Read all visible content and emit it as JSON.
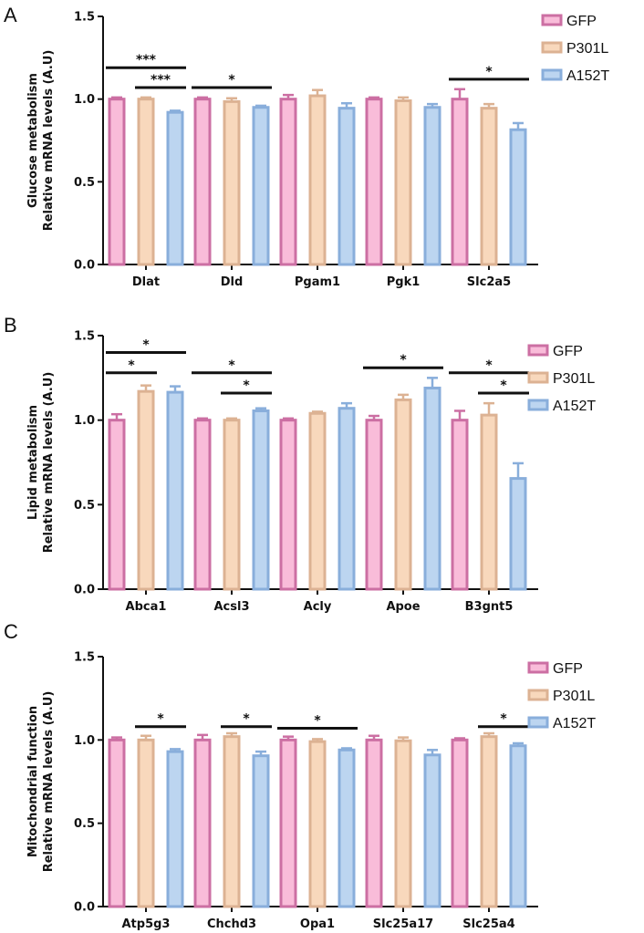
{
  "colors": {
    "GFP": {
      "fill": "#f9bcd9",
      "stroke": "#cc6fa3"
    },
    "P301L": {
      "fill": "#f8d8bc",
      "stroke": "#dcb293"
    },
    "A152T": {
      "fill": "#bcd5f0",
      "stroke": "#89aedb"
    }
  },
  "chart_data": [
    {
      "type": "bar",
      "panel": "A",
      "ylabel": [
        "Glucose metabolism",
        "Relative mRNA levels (A.U)"
      ],
      "ylim": [
        0,
        1.5
      ],
      "yticks": [
        "0.0",
        "0.5",
        "1.0",
        "1.5"
      ],
      "categories": [
        "Dlat",
        "Dld",
        "Pgam1",
        "Pgk1",
        "Slc2a5"
      ],
      "legend": [
        "GFP",
        "P301L",
        "A152T"
      ],
      "series": [
        {
          "name": "GFP",
          "values": [
            1.0,
            1.0,
            1.0,
            1.0,
            1.0
          ],
          "errors": [
            0.01,
            0.01,
            0.025,
            0.01,
            0.06
          ]
        },
        {
          "name": "P301L",
          "values": [
            1.0,
            0.985,
            1.02,
            0.99,
            0.945
          ],
          "errors": [
            0.01,
            0.02,
            0.035,
            0.02,
            0.025
          ]
        },
        {
          "name": "A152T",
          "values": [
            0.92,
            0.95,
            0.945,
            0.95,
            0.815
          ],
          "errors": [
            0.01,
            0.01,
            0.03,
            0.02,
            0.04
          ]
        }
      ],
      "significance": [
        {
          "category": 0,
          "from": 0,
          "to": 2,
          "y": 1.19,
          "label": "***"
        },
        {
          "category": 0,
          "from": 1,
          "to": 2,
          "y": 1.07,
          "label": "***"
        },
        {
          "category": 1,
          "from": 0,
          "to": 2,
          "y": 1.07,
          "label": "*"
        },
        {
          "category": 4,
          "from": 0,
          "to": 2,
          "y": 1.12,
          "label": "*"
        }
      ]
    },
    {
      "type": "bar",
      "panel": "B",
      "ylabel": [
        "Lipid metabolism",
        "Relative mRNA levels (A.U)"
      ],
      "ylim": [
        0,
        1.5
      ],
      "yticks": [
        "0.0",
        "0.5",
        "1.0",
        "1.5"
      ],
      "categories": [
        "Abca1",
        "Acsl3",
        "Acly",
        "Apoe",
        "B3gnt5"
      ],
      "legend": [
        "GFP",
        "P301L",
        "A152T"
      ],
      "series": [
        {
          "name": "GFP",
          "values": [
            1.0,
            1.0,
            1.0,
            1.0,
            1.0
          ],
          "errors": [
            0.035,
            0.01,
            0.01,
            0.025,
            0.055
          ]
        },
        {
          "name": "P301L",
          "values": [
            1.17,
            1.0,
            1.04,
            1.12,
            1.03
          ],
          "errors": [
            0.035,
            0.01,
            0.01,
            0.03,
            0.07
          ]
        },
        {
          "name": "A152T",
          "values": [
            1.165,
            1.055,
            1.07,
            1.19,
            0.655
          ],
          "errors": [
            0.035,
            0.015,
            0.03,
            0.06,
            0.09
          ]
        }
      ],
      "significance": [
        {
          "category": 0,
          "from": 0,
          "to": 2,
          "y": 1.4,
          "label": "*"
        },
        {
          "category": 0,
          "from": 0,
          "to": 1,
          "y": 1.28,
          "label": "*"
        },
        {
          "category": 1,
          "from": 0,
          "to": 2,
          "y": 1.28,
          "label": "*"
        },
        {
          "category": 1,
          "from": 1,
          "to": 2,
          "y": 1.16,
          "label": "*"
        },
        {
          "category": 3,
          "from": 0,
          "to": 2,
          "y": 1.31,
          "label": "*"
        },
        {
          "category": 4,
          "from": 0,
          "to": 2,
          "y": 1.28,
          "label": "*"
        },
        {
          "category": 4,
          "from": 1,
          "to": 2,
          "y": 1.16,
          "label": "*"
        }
      ]
    },
    {
      "type": "bar",
      "panel": "C",
      "ylabel": [
        "Mitochondrial function",
        "Relative mRNA levels (A.U)"
      ],
      "ylim": [
        0,
        1.5
      ],
      "yticks": [
        "0.0",
        "0.5",
        "1.0",
        "1.5"
      ],
      "categories": [
        "Atp5g3",
        "Chchd3",
        "Opa1",
        "Slc25a17",
        "Slc25a4"
      ],
      "legend": [
        "GFP",
        "P301L",
        "A152T"
      ],
      "series": [
        {
          "name": "GFP",
          "values": [
            1.0,
            1.0,
            1.0,
            1.0,
            1.0
          ],
          "errors": [
            0.015,
            0.03,
            0.02,
            0.025,
            0.01
          ]
        },
        {
          "name": "P301L",
          "values": [
            1.0,
            1.02,
            0.99,
            0.995,
            1.02
          ],
          "errors": [
            0.025,
            0.02,
            0.015,
            0.02,
            0.02
          ]
        },
        {
          "name": "A152T",
          "values": [
            0.93,
            0.905,
            0.94,
            0.91,
            0.965
          ],
          "errors": [
            0.015,
            0.025,
            0.01,
            0.03,
            0.015
          ]
        }
      ],
      "significance": [
        {
          "category": 0,
          "from": 1,
          "to": 2,
          "y": 1.08,
          "label": "*"
        },
        {
          "category": 1,
          "from": 1,
          "to": 2,
          "y": 1.08,
          "label": "*"
        },
        {
          "category": 2,
          "from": 0,
          "to": 2,
          "y": 1.07,
          "label": "*"
        },
        {
          "category": 4,
          "from": 1,
          "to": 2,
          "y": 1.08,
          "label": "*"
        }
      ]
    }
  ]
}
